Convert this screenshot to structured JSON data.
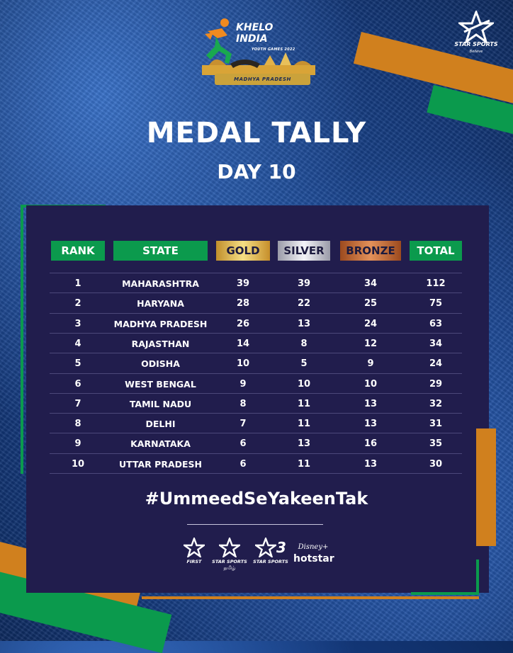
{
  "colors": {
    "background": "#1f4f9e",
    "panel": "#211d4d",
    "green": "#0b9a4d",
    "orange": "#d0801e",
    "gold": "#e4c068",
    "silver": "#d8d8e0",
    "bronze": "#c46e3a"
  },
  "event_logo": {
    "icon": "running-athlete-icon",
    "title_line1": "KHELO",
    "title_line2": "INDIA",
    "subtitle": "YOUTH GAMES 2022",
    "region": "MADHYA PRADESH"
  },
  "broadcaster_logo": {
    "icon": "star-icon",
    "name": "STAR SPORTS",
    "tagline": "Believe"
  },
  "title": "MEDAL TALLY",
  "subtitle": "DAY 10",
  "table": {
    "headers": [
      "RANK",
      "STATE",
      "GOLD",
      "SILVER",
      "BRONZE",
      "TOTAL"
    ],
    "rows": [
      [
        "1",
        "MAHARASHTRA",
        "39",
        "39",
        "34",
        "112"
      ],
      [
        "2",
        "HARYANA",
        "28",
        "22",
        "25",
        "75"
      ],
      [
        "3",
        "MADHYA PRADESH",
        "26",
        "13",
        "24",
        "63"
      ],
      [
        "4",
        "RAJASTHAN",
        "14",
        "8",
        "12",
        "34"
      ],
      [
        "5",
        "ODISHA",
        "10",
        "5",
        "9",
        "24"
      ],
      [
        "6",
        "WEST BENGAL",
        "9",
        "10",
        "10",
        "29"
      ],
      [
        "7",
        "TAMIL NADU",
        "8",
        "11",
        "13",
        "32"
      ],
      [
        "8",
        "DELHI",
        "7",
        "11",
        "13",
        "31"
      ],
      [
        "9",
        "KARNATAKA",
        "6",
        "13",
        "16",
        "35"
      ],
      [
        "10",
        "UTTAR PRADESH",
        "6",
        "11",
        "13",
        "30"
      ]
    ]
  },
  "hashtag": "#UmmeedSeYakeenTak",
  "channels": [
    {
      "icon": "star-icon",
      "label": "FIRST",
      "label2": ""
    },
    {
      "icon": "star-icon",
      "label": "STAR SPORTS",
      "label2": "தமிழ்"
    },
    {
      "icon": "star-icon",
      "label": "STAR SPORTS",
      "label2": "",
      "number": "3"
    },
    {
      "icon": "disney-hotstar-logo",
      "label": "hotstar",
      "label2": "",
      "brand": "Disney+"
    }
  ]
}
